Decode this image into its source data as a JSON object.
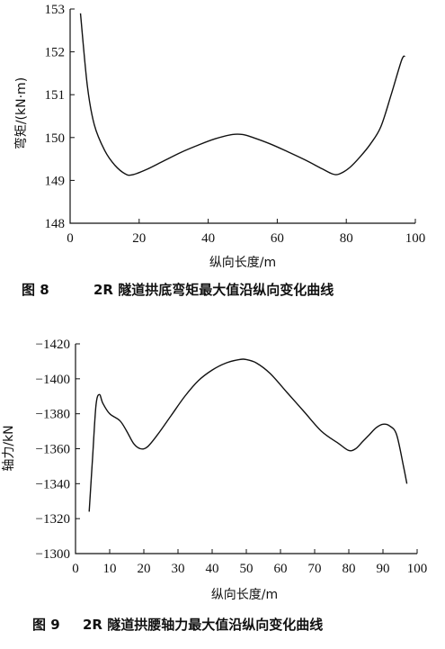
{
  "chart_data": [
    {
      "type": "line",
      "title": "",
      "caption_number": "图 8",
      "caption_text": "2R 隧道拱底弯矩最大值沿纵向变化曲线",
      "xlabel": "纵向长度/m",
      "ylabel": "弯矩/(kN·m)",
      "xlim": [
        0,
        100
      ],
      "ylim": [
        148,
        153
      ],
      "xticks": [
        0,
        20,
        40,
        60,
        80,
        100
      ],
      "yticks": [
        148,
        149,
        150,
        151,
        152,
        153
      ],
      "grid": false,
      "series": [
        {
          "x": [
            3,
            5,
            7,
            10,
            13,
            16,
            18,
            22,
            27,
            32,
            37,
            42,
            47,
            50,
            53,
            58,
            63,
            68,
            73,
            76,
            78,
            81,
            84,
            87,
            90,
            93,
            96,
            97
          ],
          "y": [
            152.9,
            151.2,
            150.3,
            149.7,
            149.35,
            149.15,
            149.13,
            149.25,
            149.45,
            149.65,
            149.82,
            149.97,
            150.07,
            150.07,
            150.0,
            149.85,
            149.67,
            149.48,
            149.27,
            149.15,
            149.15,
            149.3,
            149.55,
            149.85,
            150.25,
            151.0,
            151.8,
            151.9
          ]
        }
      ]
    },
    {
      "type": "line",
      "title": "",
      "caption_number": "图 9",
      "caption_text": "2R 隧道拱腰轴力最大值沿纵向变化曲线",
      "xlabel": "纵向长度/m",
      "ylabel": "轴力/kN",
      "xlim": [
        0,
        100
      ],
      "ylim": [
        -1300,
        -1420
      ],
      "xticks": [
        0,
        10,
        20,
        30,
        40,
        50,
        60,
        70,
        80,
        90,
        100
      ],
      "yticks": [
        -1300,
        -1320,
        -1340,
        -1360,
        -1380,
        -1400,
        -1420
      ],
      "grid": false,
      "series": [
        {
          "x": [
            4,
            5,
            6,
            7,
            8,
            10,
            13,
            15,
            17,
            19,
            21,
            24,
            28,
            32,
            36,
            40,
            44,
            48,
            50,
            53,
            57,
            62,
            67,
            72,
            77,
            80,
            82,
            84,
            86,
            88,
            90,
            92,
            94,
            96,
            97
          ],
          "y": [
            -1324,
            -1355,
            -1385,
            -1391,
            -1386,
            -1380,
            -1376,
            -1370,
            -1363,
            -1360,
            -1361,
            -1368,
            -1379,
            -1390,
            -1399,
            -1405,
            -1409,
            -1411,
            -1411,
            -1409,
            -1403,
            -1392,
            -1381,
            -1370,
            -1363,
            -1359,
            -1360,
            -1364,
            -1368,
            -1372,
            -1374,
            -1373,
            -1368,
            -1350,
            -1340
          ]
        }
      ]
    }
  ]
}
